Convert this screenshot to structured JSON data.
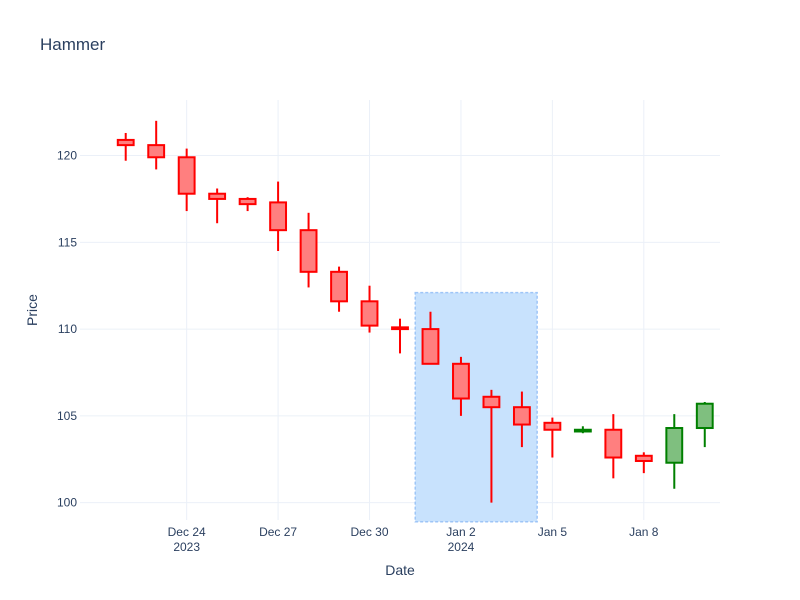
{
  "chart_data": {
    "type": "candlestick",
    "title": "Hammer",
    "xlabel": "Date",
    "ylabel": "Price",
    "ylim": [
      99,
      123.2
    ],
    "xlim": [
      "2023-12-20T12:00",
      "2024-01-10T12:00"
    ],
    "grid": true,
    "x_ticks": [
      {
        "date": "2023-12-24",
        "label": "Dec 24",
        "sublabel": "2023"
      },
      {
        "date": "2023-12-27",
        "label": "Dec 27",
        "sublabel": ""
      },
      {
        "date": "2023-12-30",
        "label": "Dec 30",
        "sublabel": ""
      },
      {
        "date": "2024-01-02",
        "label": "Jan 2",
        "sublabel": "2024"
      },
      {
        "date": "2024-01-05",
        "label": "Jan 5",
        "sublabel": ""
      },
      {
        "date": "2024-01-08",
        "label": "Jan 8",
        "sublabel": ""
      }
    ],
    "y_ticks": [
      100,
      105,
      110,
      115,
      120
    ],
    "increasing_color": "#008000",
    "decreasing_color": "#ff0000",
    "increasing_fill": "#7fbf7f",
    "decreasing_fill": "#ff7f7f",
    "highlight": {
      "x0": "2023-12-31T12:00",
      "x1": "2024-01-04T12:00",
      "y0": 98.9,
      "y1": 112.1,
      "fill": "#c8e2fd",
      "border": "#9ec5f7"
    },
    "candles": [
      {
        "date": "2023-12-22",
        "open": 120.9,
        "high": 121.3,
        "low": 119.7,
        "close": 120.6
      },
      {
        "date": "2023-12-23",
        "open": 120.6,
        "high": 122.0,
        "low": 119.2,
        "close": 119.9
      },
      {
        "date": "2023-12-24",
        "open": 119.9,
        "high": 120.4,
        "low": 116.8,
        "close": 117.8
      },
      {
        "date": "2023-12-25",
        "open": 117.8,
        "high": 118.1,
        "low": 116.1,
        "close": 117.5
      },
      {
        "date": "2023-12-26",
        "open": 117.5,
        "high": 117.6,
        "low": 116.8,
        "close": 117.2
      },
      {
        "date": "2023-12-27",
        "open": 117.3,
        "high": 118.5,
        "low": 114.5,
        "close": 115.7
      },
      {
        "date": "2023-12-28",
        "open": 115.7,
        "high": 116.7,
        "low": 112.4,
        "close": 113.3
      },
      {
        "date": "2023-12-29",
        "open": 113.3,
        "high": 113.6,
        "low": 111.0,
        "close": 111.6
      },
      {
        "date": "2023-12-30",
        "open": 111.6,
        "high": 112.5,
        "low": 109.8,
        "close": 110.2
      },
      {
        "date": "2023-12-31",
        "open": 110.1,
        "high": 110.6,
        "low": 108.6,
        "close": 110.0
      },
      {
        "date": "2024-01-01",
        "open": 110.0,
        "high": 111.0,
        "low": 108.0,
        "close": 108.0
      },
      {
        "date": "2024-01-02",
        "open": 108.0,
        "high": 108.4,
        "low": 105.0,
        "close": 106.0
      },
      {
        "date": "2024-01-03",
        "open": 106.1,
        "high": 106.5,
        "low": 100.0,
        "close": 105.5
      },
      {
        "date": "2024-01-04",
        "open": 105.5,
        "high": 106.4,
        "low": 103.2,
        "close": 104.5
      },
      {
        "date": "2024-01-05",
        "open": 104.6,
        "high": 104.9,
        "low": 102.6,
        "close": 104.2
      },
      {
        "date": "2024-01-06",
        "open": 104.1,
        "high": 104.4,
        "low": 104.0,
        "close": 104.2
      },
      {
        "date": "2024-01-07",
        "open": 104.2,
        "high": 105.1,
        "low": 101.4,
        "close": 102.6
      },
      {
        "date": "2024-01-08",
        "open": 102.7,
        "high": 102.9,
        "low": 101.7,
        "close": 102.4
      },
      {
        "date": "2024-01-09",
        "open": 102.3,
        "high": 105.1,
        "low": 100.8,
        "close": 104.3
      },
      {
        "date": "2024-01-10",
        "open": 104.3,
        "high": 105.8,
        "low": 103.2,
        "close": 105.7
      }
    ]
  }
}
